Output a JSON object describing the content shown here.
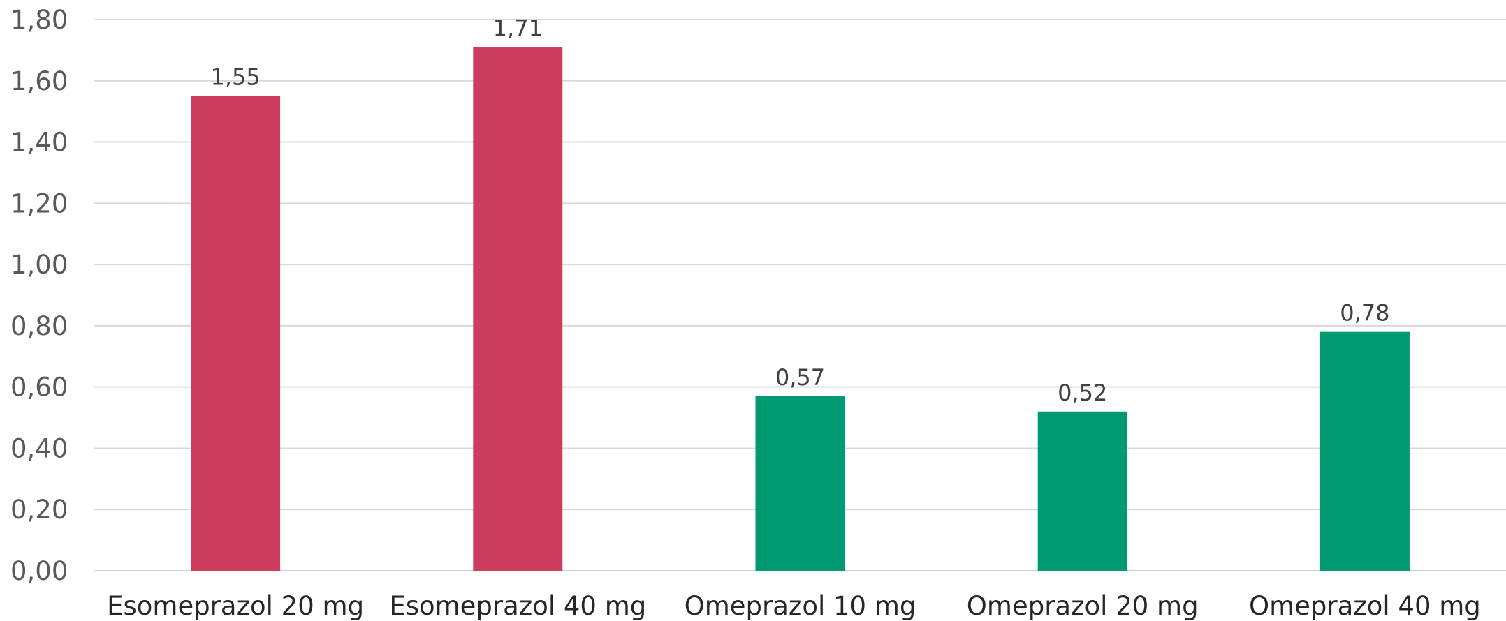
{
  "chart_data": {
    "type": "bar",
    "title": "",
    "xlabel": "",
    "ylabel": "",
    "categories": [
      "Esomeprazol 20 mg",
      "Esomeprazol 40 mg",
      "Omeprazol 10 mg",
      "Omeprazol 20 mg",
      "Omeprazol 40 mg"
    ],
    "values": [
      1.55,
      1.71,
      0.57,
      0.52,
      0.78
    ],
    "value_labels": [
      "1,55",
      "1,71",
      "0,57",
      "0,52",
      "0,78"
    ],
    "bar_colors": [
      "#cc3d5e",
      "#cc3d5e",
      "#009a72",
      "#009a72",
      "#009a72"
    ],
    "ylim": [
      0,
      1.8
    ],
    "y_ticks": [
      0,
      0.2,
      0.4,
      0.6,
      0.8,
      1.0,
      1.2,
      1.4,
      1.6,
      1.8
    ],
    "y_tick_labels": [
      "0,00",
      "0,20",
      "0,40",
      "0,60",
      "0,80",
      "1,00",
      "1,20",
      "1,40",
      "1,60",
      "1,80"
    ],
    "grid": true,
    "legend": "none"
  }
}
